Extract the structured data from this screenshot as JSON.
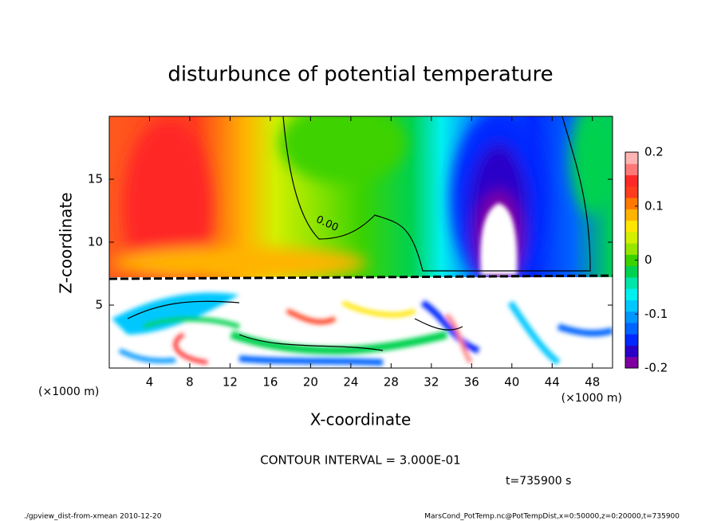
{
  "chart_data": {
    "type": "contour",
    "title": "disturbunce of potential temperature",
    "xlabel": "X-coordinate",
    "ylabel": "Z-coordinate",
    "xunit": "(×1000 m)",
    "yunit": "(×1000 m)",
    "xlim": [
      0,
      50
    ],
    "xticks": [
      4,
      8,
      12,
      16,
      20,
      24,
      28,
      32,
      36,
      40,
      44,
      48
    ],
    "ylim": [
      0,
      20
    ],
    "yticks": [
      5,
      10,
      15
    ],
    "colorbar": {
      "clim": [
        -0.2,
        0.2
      ],
      "ticks": [
        -0.2,
        -0.1,
        0,
        0.1,
        0.2
      ],
      "colors": [
        "#7f00a0",
        "#2a00c8",
        "#0028ff",
        "#0064ff",
        "#0096ff",
        "#00c8ff",
        "#00f0f0",
        "#00e6aa",
        "#00d250",
        "#3cd200",
        "#96e600",
        "#d2f000",
        "#ffe600",
        "#ffb400",
        "#ff7800",
        "#ff3c1e",
        "#ff2828",
        "#ff7878",
        "#ffb4b4"
      ]
    },
    "contour_label": "0.00",
    "contour_interval": "CONTOUR INTERVAL = 3.000E-01",
    "time_label": "t=735900 s",
    "footer_left": "./gpview_dist-from-xmean  2010-12-20",
    "footer_right": "MarsCond_PotTemp.nc@PotTempDist,x=0:50000,z=0:20000,t=735900"
  }
}
